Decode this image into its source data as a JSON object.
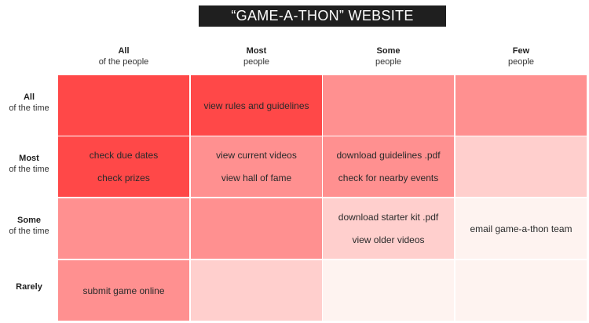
{
  "title": "“GAME-A-THON” WEBSITE",
  "columns": [
    {
      "strong": "All",
      "sub": "of the people"
    },
    {
      "strong": "Most",
      "sub": "people"
    },
    {
      "strong": "Some",
      "sub": "people"
    },
    {
      "strong": "Few",
      "sub": "people"
    }
  ],
  "rows": [
    {
      "strong": "All",
      "sub": "of the time"
    },
    {
      "strong": "Most",
      "sub": "of the time"
    },
    {
      "strong": "Some",
      "sub": "of the time"
    },
    {
      "strong": "Rarely",
      "sub": ""
    }
  ],
  "colors": {
    "level4": "#ff4848",
    "level3": "#ff9090",
    "level2": "#ffcfcd",
    "level1": "#fef3f0"
  },
  "grid": [
    [
      {
        "color": "level4",
        "items": []
      },
      {
        "color": "level4",
        "items": [
          "view rules and guidelines"
        ]
      },
      {
        "color": "level3",
        "items": []
      },
      {
        "color": "level3",
        "items": []
      }
    ],
    [
      {
        "color": "level4",
        "items": [
          "check due dates",
          "check prizes"
        ]
      },
      {
        "color": "level3",
        "items": [
          "view current videos",
          "view hall of fame"
        ]
      },
      {
        "color": "level3",
        "items": [
          "download guidelines .pdf",
          "check for nearby events"
        ]
      },
      {
        "color": "level2",
        "items": []
      }
    ],
    [
      {
        "color": "level3",
        "items": []
      },
      {
        "color": "level3",
        "items": []
      },
      {
        "color": "level2",
        "items": [
          "download starter kit .pdf",
          "view older videos"
        ]
      },
      {
        "color": "level1",
        "items": [
          "email game-a-thon team"
        ]
      }
    ],
    [
      {
        "color": "level3",
        "items": [
          "submit game online"
        ]
      },
      {
        "color": "level2",
        "items": []
      },
      {
        "color": "level1",
        "items": []
      },
      {
        "color": "level1",
        "items": []
      }
    ]
  ]
}
